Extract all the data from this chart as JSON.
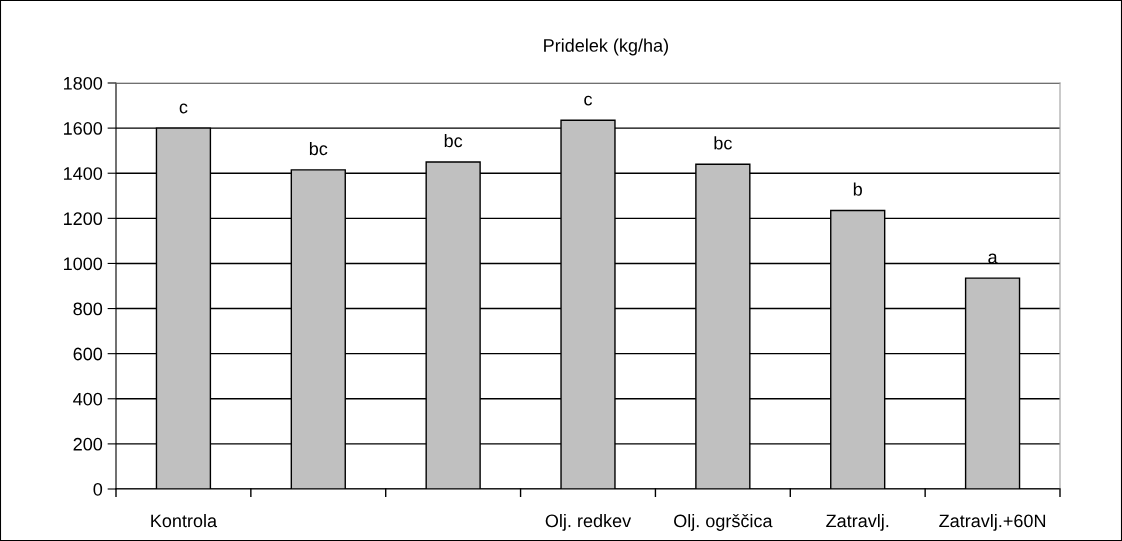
{
  "chart_data": {
    "type": "bar",
    "title": "Pridelek (kg/ha)",
    "categories": [
      "Kontrola",
      null,
      null,
      "Olj. redkev",
      "Olj. ogrščica",
      "Zatravlj.",
      "Zatravlj.+60N"
    ],
    "values": [
      1600,
      1415,
      1450,
      1635,
      1440,
      1235,
      935
    ],
    "value_labels": [
      "c",
      "bc",
      "bc",
      "c",
      "bc",
      "b",
      "a"
    ],
    "color": "#c0c0c0",
    "ylim": [
      0,
      1800
    ],
    "yticks": [
      0,
      200,
      400,
      600,
      800,
      1000,
      1200,
      1400,
      1600,
      1800
    ],
    "grid": "y"
  }
}
